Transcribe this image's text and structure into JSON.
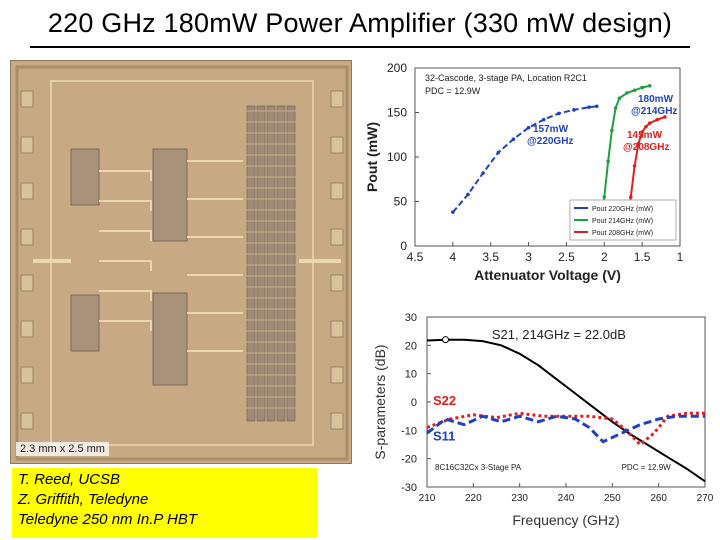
{
  "slide": {
    "title": "220 GHz 180mW Power Amplifier (330 mW design)",
    "die_label": "2.3 mm x 2.5 mm",
    "credits": [
      "T. Reed, UCSB",
      "Z. Griffith, Teledyne",
      "Teledyne 250 nm In.P HBT"
    ]
  },
  "chart_data": [
    {
      "type": "line",
      "title": "",
      "xlabel": "Attenuator Voltage (V)",
      "ylabel": "Pout (mW)",
      "xlim": [
        4.5,
        1
      ],
      "ylim": [
        0,
        200
      ],
      "x_ticks": [
        "4.5",
        "4",
        "3.5",
        "3",
        "2.5",
        "2",
        "1.5",
        "1"
      ],
      "y_ticks": [
        "0",
        "50",
        "100",
        "150",
        "200"
      ],
      "inner_text": [
        "32-Cascode, 3-stage PA, Location R2C1",
        "PDC = 12.9W"
      ],
      "annotations": [
        "157mW @220GHz",
        "180mW @214GHz",
        "145mW @208GHz"
      ],
      "legend_placement": "bottom-right",
      "series": [
        {
          "name": "Pout 220GHz (mW)",
          "color": "#2040c0",
          "x": [
            4.0,
            3.8,
            3.6,
            3.4,
            3.2,
            3.0,
            2.8,
            2.6,
            2.4,
            2.2,
            2.1
          ],
          "y": [
            38,
            58,
            82,
            105,
            120,
            133,
            142,
            149,
            153,
            156,
            157
          ]
        },
        {
          "name": "Pout 214GHz (mW)",
          "color": "#20a040",
          "x": [
            2.05,
            2.0,
            1.95,
            1.9,
            1.85,
            1.8,
            1.7,
            1.6,
            1.5,
            1.4
          ],
          "y": [
            20,
            55,
            95,
            130,
            155,
            166,
            172,
            175,
            178,
            180
          ]
        },
        {
          "name": "Pout 208GHz (mW)",
          "color": "#e02020",
          "x": [
            1.7,
            1.65,
            1.6,
            1.55,
            1.5,
            1.45,
            1.4,
            1.3,
            1.2
          ],
          "y": [
            20,
            55,
            90,
            115,
            128,
            134,
            138,
            142,
            145
          ]
        }
      ]
    },
    {
      "type": "line",
      "title": "",
      "xlabel": "Frequency (GHz)",
      "ylabel": "S-parameters (dB)",
      "xlim": [
        210,
        270
      ],
      "ylim": [
        -30,
        30
      ],
      "x_ticks": [
        "210",
        "220",
        "230",
        "240",
        "250",
        "260",
        "270"
      ],
      "y_ticks": [
        "-30",
        "-20",
        "-10",
        "0",
        "10",
        "20",
        "30"
      ],
      "annotations": [
        "S21, 214GHz = 22.0dB",
        "S22",
        "S11",
        "PDC = 12.9W"
      ],
      "inner_text": [
        "8C16C32Cx 3-Stage PA"
      ],
      "series": [
        {
          "name": "S21",
          "color": "#000000",
          "x": [
            210,
            214,
            218,
            222,
            226,
            230,
            234,
            238,
            242,
            246,
            250,
            254,
            258,
            262,
            266,
            270
          ],
          "y": [
            21.7,
            22.0,
            22.0,
            21.5,
            20,
            17,
            13,
            8,
            3,
            -2,
            -7,
            -11.5,
            -15.5,
            -19.5,
            -23.5,
            -28
          ]
        },
        {
          "name": "S22",
          "color": "#e02020",
          "x": [
            210,
            215,
            220,
            225,
            230,
            235,
            240,
            245,
            250,
            253,
            256,
            259,
            262,
            266,
            270
          ],
          "y": [
            -9,
            -6,
            -4.5,
            -5.5,
            -4,
            -5,
            -5,
            -5,
            -6,
            -10,
            -15,
            -11,
            -5,
            -4,
            -4
          ]
        },
        {
          "name": "S11",
          "color": "#2040c0",
          "x": [
            210,
            214,
            218,
            222,
            226,
            230,
            234,
            238,
            242,
            245,
            248,
            252,
            256,
            260,
            264,
            270
          ],
          "y": [
            -11,
            -6,
            -8,
            -5,
            -7,
            -5,
            -7,
            -5,
            -6,
            -9,
            -14,
            -11,
            -8,
            -6,
            -5,
            -5
          ]
        }
      ]
    }
  ]
}
